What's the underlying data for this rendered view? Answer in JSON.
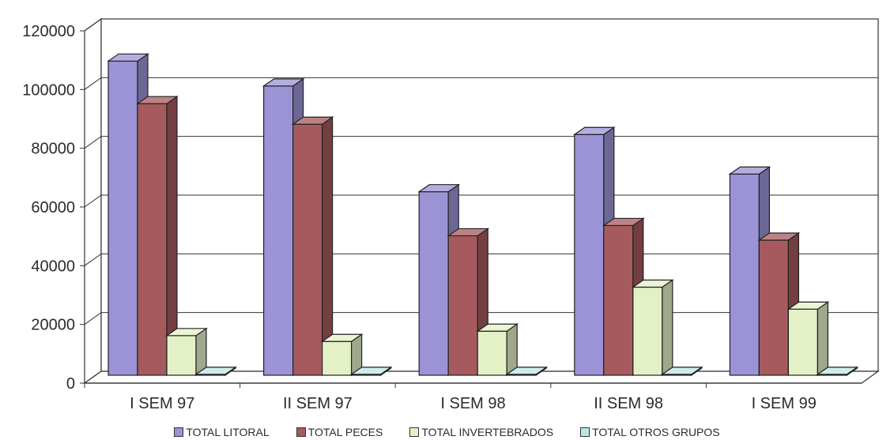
{
  "chart_data": {
    "type": "bar",
    "categories": [
      "I SEM 97",
      "II SEM 97",
      "I SEM 98",
      "II SEM 98",
      "I SEM 99"
    ],
    "series": [
      {
        "name": "TOTAL LITORAL",
        "values": [
          107000,
          98500,
          62500,
          82000,
          68500
        ],
        "color": "#9b93d6"
      },
      {
        "name": "TOTAL PECES",
        "values": [
          92500,
          85500,
          47500,
          51000,
          46000
        ],
        "color": "#a65a5e"
      },
      {
        "name": "TOTAL INVERTEBRADOS",
        "values": [
          13500,
          11500,
          15000,
          30000,
          22500
        ],
        "color": "#e4f0c6"
      },
      {
        "name": "TOTAL OTROS GRUPOS",
        "values": [
          300,
          300,
          300,
          300,
          300
        ],
        "color": "#bfe6e6"
      }
    ],
    "yticks": [
      "0",
      "20000",
      "40000",
      "60000",
      "80000",
      "100000",
      "120000"
    ],
    "ylim": [
      0,
      120000
    ],
    "grid": true,
    "style": "3d-clustered-column",
    "legend_position": "bottom"
  }
}
